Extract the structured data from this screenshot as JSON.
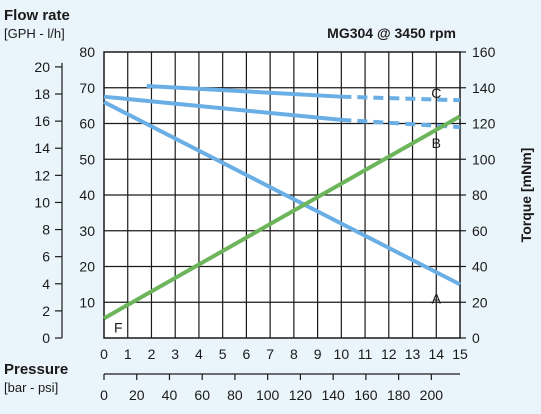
{
  "chart_data": {
    "type": "line",
    "title": "MG304 @ 3450 rpm",
    "flow_title": "Flow rate",
    "flow_units": "[GPH - l/h]",
    "torque_label": "Torque [mNm]",
    "pressure_title": "Pressure",
    "pressure_units": "[bar - psi]",
    "x_bar": {
      "range": [
        0,
        15
      ],
      "ticks": [
        0,
        1,
        2,
        3,
        4,
        5,
        6,
        7,
        8,
        9,
        10,
        11,
        12,
        13,
        14,
        15
      ]
    },
    "x_psi": {
      "range": [
        0,
        217.5
      ],
      "ticks": [
        0,
        20,
        40,
        60,
        80,
        100,
        120,
        140,
        160,
        180,
        200
      ]
    },
    "y_lh": {
      "range": [
        0,
        80
      ],
      "ticks": [
        10,
        20,
        30,
        40,
        50,
        60,
        70,
        80
      ]
    },
    "y_gph": {
      "range": [
        0,
        21.1
      ],
      "ticks": [
        0,
        2,
        4,
        6,
        8,
        10,
        12,
        14,
        16,
        18,
        20
      ]
    },
    "y_torque": {
      "range": [
        0,
        160
      ],
      "ticks": [
        0,
        20,
        40,
        60,
        80,
        100,
        120,
        140,
        160
      ]
    },
    "grid": true,
    "series": [
      {
        "name": "A",
        "axis": "flow_lh",
        "color": "#6aaee6",
        "style": "solid",
        "x": [
          0,
          15
        ],
        "y": [
          66,
          15
        ]
      },
      {
        "name": "B",
        "axis": "flow_lh",
        "color": "#6aaee6",
        "style": "solid",
        "x": [
          0,
          10
        ],
        "y": [
          67.5,
          61
        ]
      },
      {
        "name": "B",
        "axis": "flow_lh",
        "color": "#6aaee6",
        "style": "dashed",
        "x": [
          10,
          15
        ],
        "y": [
          61,
          59
        ]
      },
      {
        "name": "C",
        "axis": "flow_lh",
        "color": "#6aaee6",
        "style": "solid",
        "x": [
          1.8,
          10
        ],
        "y": [
          70.5,
          67.5
        ]
      },
      {
        "name": "C",
        "axis": "flow_lh",
        "color": "#6aaee6",
        "style": "dashed",
        "x": [
          10,
          15
        ],
        "y": [
          67.5,
          66.5
        ]
      },
      {
        "name": "F",
        "axis": "torque",
        "color": "#6cb55a",
        "style": "solid",
        "x": [
          0,
          15
        ],
        "y": [
          11,
          124
        ]
      }
    ],
    "curve_labels": [
      {
        "text": "A",
        "x": 14.0,
        "y": 11
      },
      {
        "text": "B",
        "x": 14.0,
        "y": 54.5
      },
      {
        "text": "C",
        "x": 14.0,
        "y": 68.5
      },
      {
        "text": "F",
        "x": 0.6,
        "y": 3
      }
    ]
  }
}
